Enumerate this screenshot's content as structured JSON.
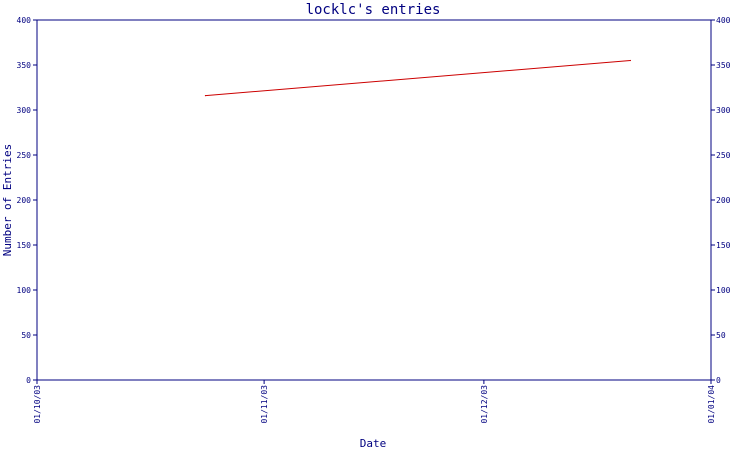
{
  "chart_data": {
    "type": "line",
    "title": "locklc's entries",
    "xlabel": "Date",
    "ylabel": "Number of Entries",
    "x_ticks": [
      "01/10/03",
      "01/11/03",
      "01/12/03",
      "01/01/04"
    ],
    "xlim": [
      "01/10/03",
      "01/01/04"
    ],
    "ylim": [
      0,
      400
    ],
    "y_ticks": [
      0,
      50,
      100,
      150,
      200,
      250,
      300,
      350,
      400
    ],
    "grid": false,
    "legend": "none",
    "series": [
      {
        "color": "#cc0000",
        "points": [
          {
            "x": "24/10/03",
            "y": 316
          },
          {
            "x": "21/12/03",
            "y": 355
          }
        ]
      }
    ]
  },
  "colors": {
    "axis": "#000080",
    "line": "#cc0000",
    "background": "#ffffff"
  }
}
